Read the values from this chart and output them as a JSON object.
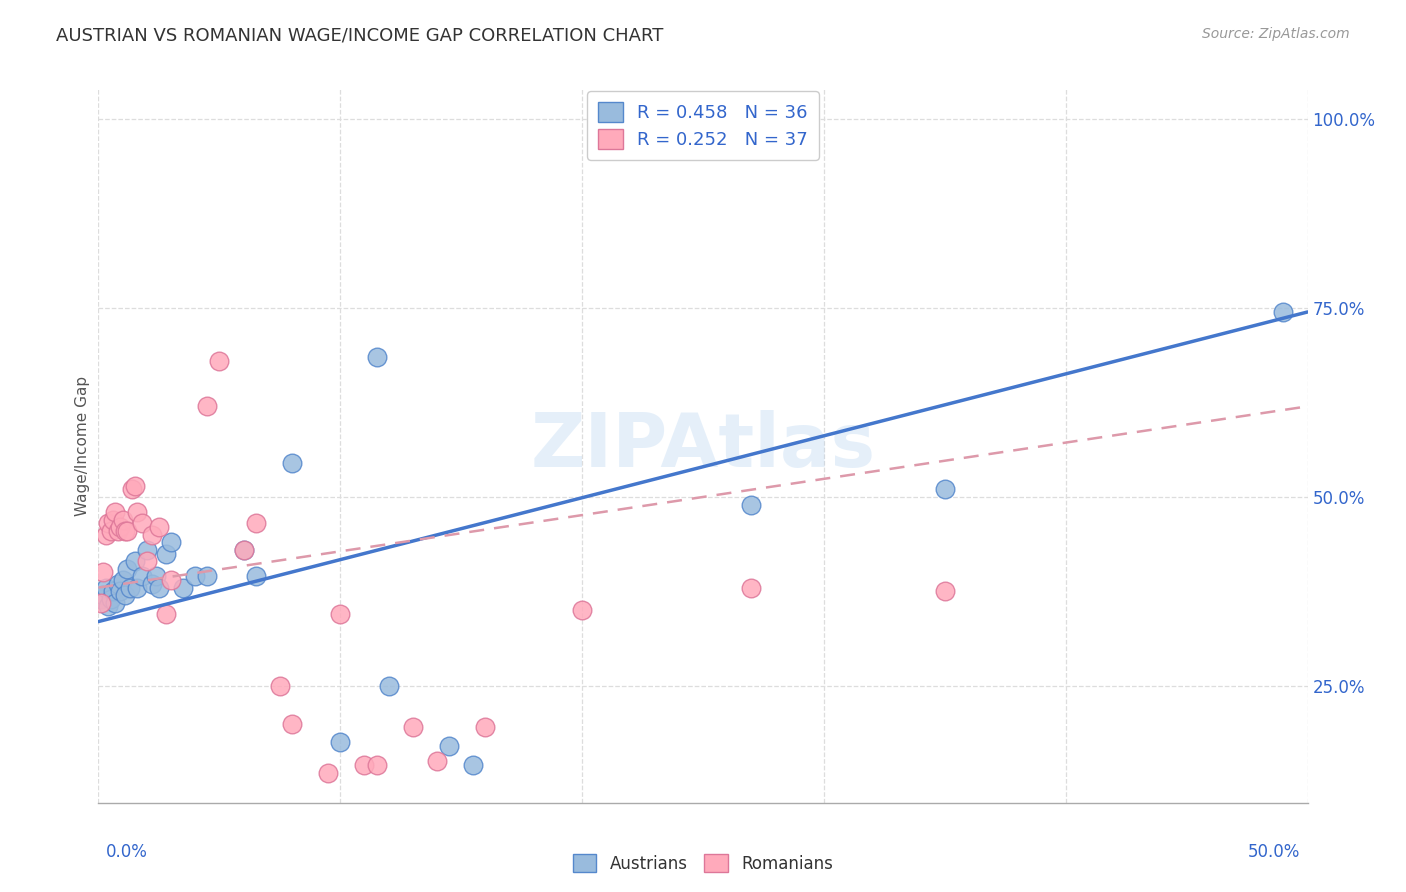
{
  "title": "AUSTRIAN VS ROMANIAN WAGE/INCOME GAP CORRELATION CHART",
  "source": "Source: ZipAtlas.com",
  "ylabel": "Wage/Income Gap",
  "ytick_labels": [
    "25.0%",
    "50.0%",
    "75.0%",
    "100.0%"
  ],
  "watermark": "ZIPAtlas",
  "legend_blue": "R = 0.458   N = 36",
  "legend_pink": "R = 0.252   N = 37",
  "blue_color": "#99BBDD",
  "pink_color": "#FFAABB",
  "blue_edge_color": "#5588CC",
  "pink_edge_color": "#DD7799",
  "blue_line_color": "#4477CC",
  "pink_line_color": "#DD99AA",
  "blue_scatter": [
    [
      0.001,
      0.365
    ],
    [
      0.002,
      0.37
    ],
    [
      0.003,
      0.38
    ],
    [
      0.004,
      0.355
    ],
    [
      0.005,
      0.365
    ],
    [
      0.006,
      0.375
    ],
    [
      0.007,
      0.36
    ],
    [
      0.008,
      0.385
    ],
    [
      0.009,
      0.375
    ],
    [
      0.01,
      0.39
    ],
    [
      0.011,
      0.37
    ],
    [
      0.012,
      0.405
    ],
    [
      0.013,
      0.38
    ],
    [
      0.015,
      0.415
    ],
    [
      0.016,
      0.38
    ],
    [
      0.018,
      0.395
    ],
    [
      0.02,
      0.43
    ],
    [
      0.022,
      0.385
    ],
    [
      0.024,
      0.395
    ],
    [
      0.025,
      0.38
    ],
    [
      0.028,
      0.425
    ],
    [
      0.03,
      0.44
    ],
    [
      0.035,
      0.38
    ],
    [
      0.04,
      0.395
    ],
    [
      0.045,
      0.395
    ],
    [
      0.06,
      0.43
    ],
    [
      0.065,
      0.395
    ],
    [
      0.08,
      0.545
    ],
    [
      0.1,
      0.175
    ],
    [
      0.115,
      0.685
    ],
    [
      0.12,
      0.25
    ],
    [
      0.145,
      0.17
    ],
    [
      0.155,
      0.145
    ],
    [
      0.27,
      0.49
    ],
    [
      0.35,
      0.51
    ],
    [
      0.49,
      0.745
    ]
  ],
  "pink_scatter": [
    [
      0.001,
      0.36
    ],
    [
      0.002,
      0.4
    ],
    [
      0.003,
      0.45
    ],
    [
      0.004,
      0.465
    ],
    [
      0.005,
      0.455
    ],
    [
      0.006,
      0.47
    ],
    [
      0.007,
      0.48
    ],
    [
      0.008,
      0.455
    ],
    [
      0.009,
      0.46
    ],
    [
      0.01,
      0.47
    ],
    [
      0.011,
      0.455
    ],
    [
      0.012,
      0.455
    ],
    [
      0.014,
      0.51
    ],
    [
      0.015,
      0.515
    ],
    [
      0.016,
      0.48
    ],
    [
      0.018,
      0.465
    ],
    [
      0.02,
      0.415
    ],
    [
      0.022,
      0.45
    ],
    [
      0.025,
      0.46
    ],
    [
      0.028,
      0.345
    ],
    [
      0.03,
      0.39
    ],
    [
      0.045,
      0.62
    ],
    [
      0.05,
      0.68
    ],
    [
      0.06,
      0.43
    ],
    [
      0.065,
      0.465
    ],
    [
      0.075,
      0.25
    ],
    [
      0.08,
      0.2
    ],
    [
      0.1,
      0.345
    ],
    [
      0.095,
      0.135
    ],
    [
      0.11,
      0.145
    ],
    [
      0.115,
      0.145
    ],
    [
      0.13,
      0.195
    ],
    [
      0.14,
      0.15
    ],
    [
      0.16,
      0.195
    ],
    [
      0.2,
      0.35
    ],
    [
      0.27,
      0.38
    ],
    [
      0.35,
      0.375
    ]
  ],
  "blue_trend_x": [
    0.0,
    0.5
  ],
  "blue_trend_y": [
    0.335,
    0.745
  ],
  "pink_trend_x": [
    0.0,
    0.5
  ],
  "pink_trend_y": [
    0.38,
    0.62
  ],
  "xlim": [
    0.0,
    0.5
  ],
  "ylim": [
    0.095,
    1.04
  ],
  "yticks": [
    0.25,
    0.5,
    0.75,
    1.0
  ],
  "xtick_positions": [
    0.0,
    0.1,
    0.2,
    0.3,
    0.4,
    0.5
  ],
  "bg_color": "#FFFFFF",
  "grid_color": "#DDDDDD",
  "title_color": "#333333",
  "source_color": "#999999",
  "axis_label_color": "#3366CC",
  "ylabel_color": "#555555"
}
